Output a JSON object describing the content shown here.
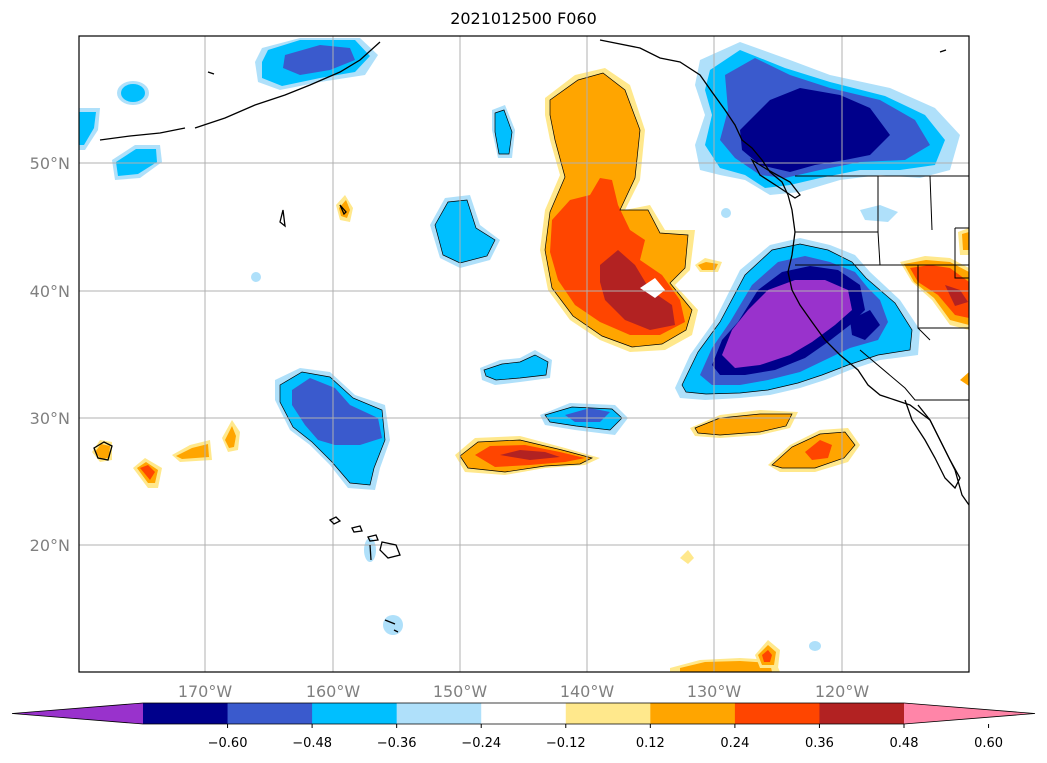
{
  "title": "2021012500 F060",
  "map": {
    "latitude_labels": [
      "50°N",
      "40°N",
      "30°N",
      "20°N"
    ],
    "longitude_labels": [
      "170°W",
      "160°W",
      "150°W",
      "140°W",
      "130°W",
      "120°W"
    ],
    "gridlines": true
  },
  "colorbar": {
    "orientation": "horizontal",
    "extend": "both",
    "tick_labels": [
      "−0.60",
      "−0.48",
      "−0.36",
      "−0.24",
      "−0.12",
      "0.12",
      "0.24",
      "0.36",
      "0.48",
      "0.60"
    ],
    "colors": [
      "#9932cc",
      "#00008b",
      "#3a5acd",
      "#00bfff",
      "#afe0fa",
      "#ffffff",
      "#ffe88c",
      "#ffa500",
      "#ff4500",
      "#b22222",
      "#ff85a8"
    ]
  },
  "colors": {
    "coast": "#000000",
    "grid": "#b0b0b0",
    "axis_label": "#808080"
  }
}
